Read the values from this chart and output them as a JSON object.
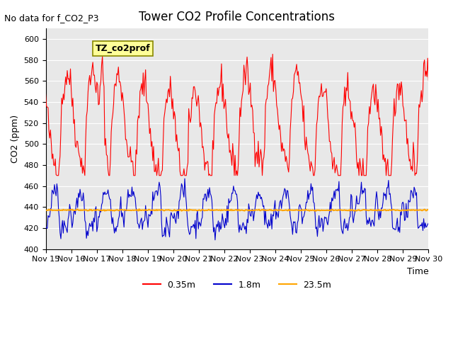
{
  "title": "Tower CO2 Profile Concentrations",
  "top_left_text": "No data for f_CO2_P3",
  "box_label": "TZ_co2prof",
  "ylabel": "CO2 (ppm)",
  "xlabel": "Time",
  "ylim": [
    400,
    610
  ],
  "yticks": [
    400,
    420,
    440,
    460,
    480,
    500,
    520,
    540,
    560,
    580,
    600
  ],
  "bg_color": "#e8e8e8",
  "fig_bg": "#ffffff",
  "red_color": "#ff0000",
  "blue_color": "#0000cc",
  "orange_color": "#ffa500",
  "flat_value": 437.0,
  "legend_labels": [
    "0.35m",
    "1.8m",
    "23.5m"
  ],
  "x_tick_labels": [
    "Nov 15",
    "Nov 16",
    "Nov 17",
    "Nov 18",
    "Nov 19",
    "Nov 20",
    "Nov 21",
    "Nov 22",
    "Nov 23",
    "Nov 24",
    "Nov 25",
    "Nov 26",
    "Nov 27",
    "Nov 28",
    "Nov 29",
    "Nov 30"
  ],
  "n_days": 15,
  "seed": 42
}
